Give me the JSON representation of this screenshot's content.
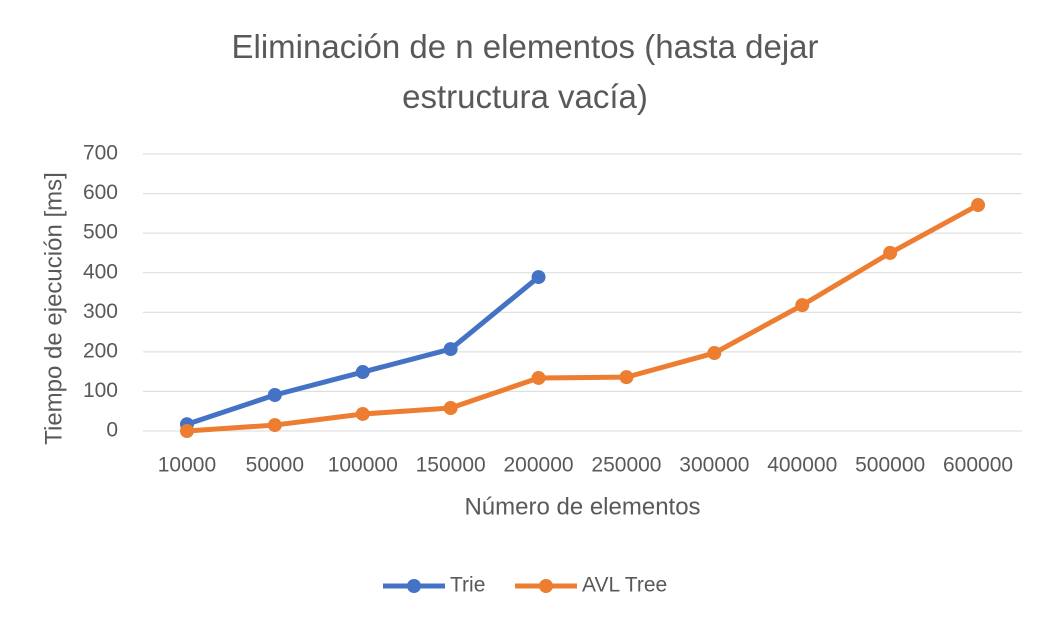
{
  "chart_data": {
    "type": "line",
    "title": "Eliminación de n elementos (hasta dejar estructura vacía)",
    "x_label": "Número de elementos",
    "y_label": "Tiempo de ejecución [ms]",
    "categories": [
      "10000",
      "50000",
      "100000",
      "150000",
      "200000",
      "250000",
      "300000",
      "400000",
      "500000",
      "600000"
    ],
    "series": [
      {
        "name": "Trie",
        "color": "#4472c4",
        "values": [
          17,
          91,
          149,
          207,
          389,
          null,
          null,
          null,
          null,
          null
        ]
      },
      {
        "name": "AVL Tree",
        "color": "#ed7d31",
        "values": [
          0,
          15,
          43,
          58,
          134,
          136,
          197,
          318,
          450,
          571
        ]
      }
    ],
    "ylim": [
      0,
      700
    ],
    "yticks": [
      0,
      100,
      200,
      300,
      400,
      500,
      600,
      700
    ],
    "grid": true,
    "legend": "bottom"
  }
}
